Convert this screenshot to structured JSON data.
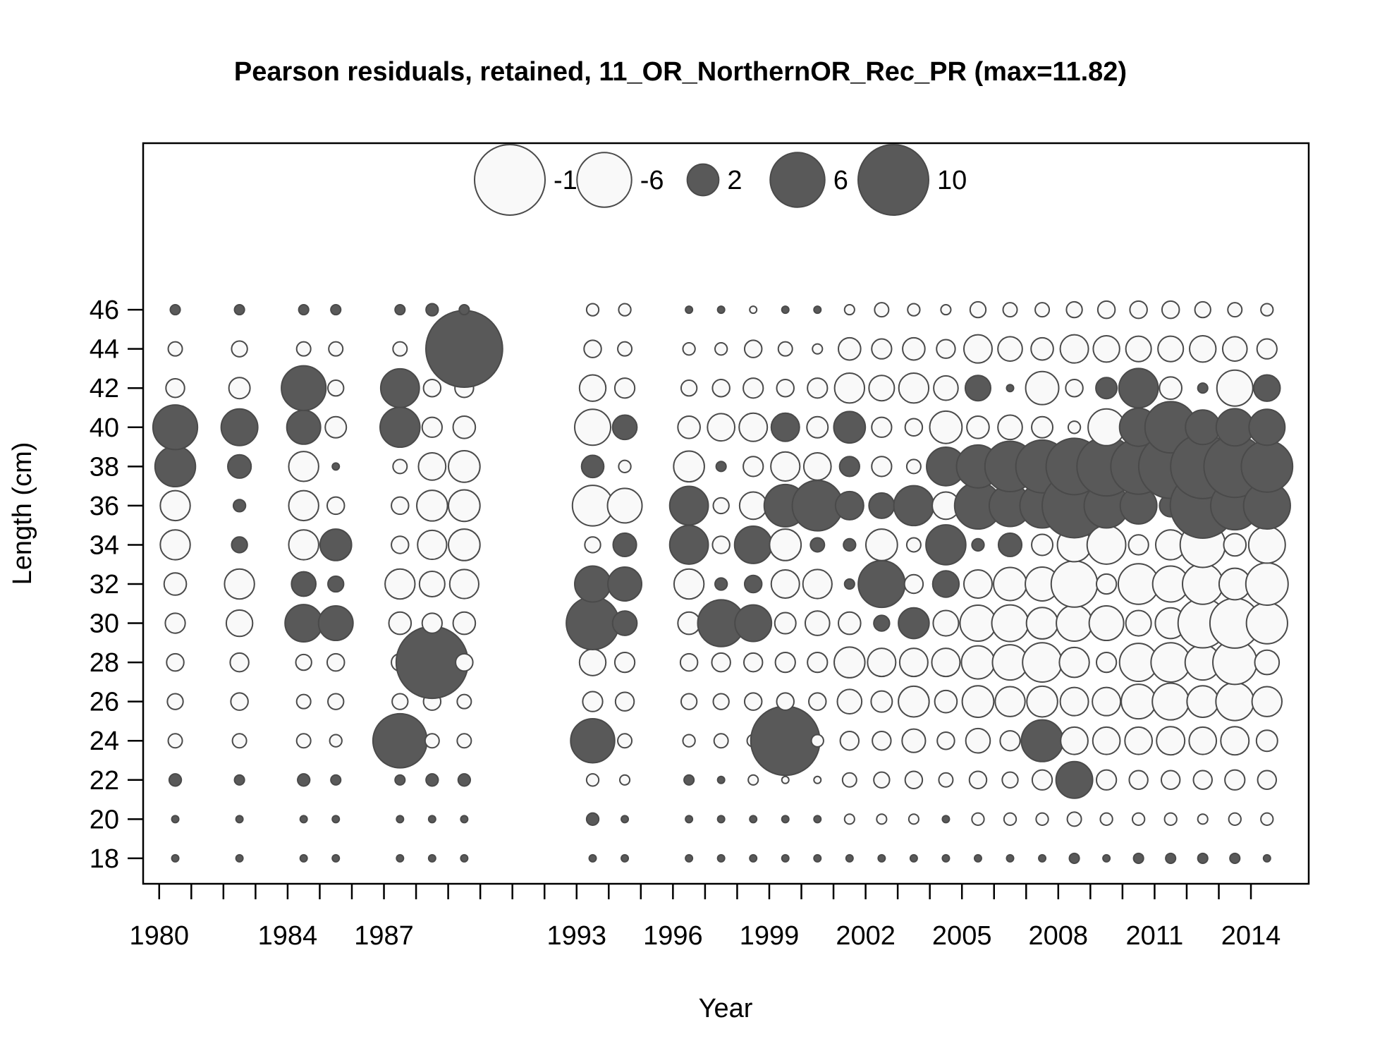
{
  "chart_data": {
    "type": "bubble",
    "title": "Pearson residuals, retained, 11_OR_NorthernOR_Rec_PR (max=11.82)",
    "xlabel": "Year",
    "ylabel": "Length (cm)",
    "x_ticks": [
      1980,
      1981,
      1982,
      1983,
      1984,
      1985,
      1986,
      1987,
      1988,
      1989,
      1990,
      1991,
      1992,
      1993,
      1994,
      1995,
      1996,
      1997,
      1998,
      1999,
      2000,
      2001,
      2002,
      2003,
      2004,
      2005,
      2006,
      2007,
      2008,
      2009,
      2010,
      2011,
      2012,
      2013,
      2014
    ],
    "x_tick_labels": [
      "1980",
      "1984",
      "1987",
      "1993",
      "1996",
      "1999",
      "2002",
      "2005",
      "2008",
      "2011",
      "2014"
    ],
    "xlim": [
      1979.5,
      2015.8
    ],
    "y_ticks": [
      18,
      20,
      22,
      24,
      26,
      28,
      30,
      32,
      34,
      36,
      38,
      40,
      42,
      44,
      46
    ],
    "ylim": [
      16.7,
      54.5
    ],
    "max_abs_residual": 11.82,
    "colors": {
      "positive": "#595959",
      "negative": "#f9f9f9",
      "outline": "#4a4a4a"
    },
    "legend": {
      "placement": "top-center",
      "entries": [
        {
          "label": "-10",
          "value": -10
        },
        {
          "label": "-6",
          "value": -6
        },
        {
          "label": "2",
          "value": 2
        },
        {
          "label": "6",
          "value": 6
        },
        {
          "label": "10",
          "value": 10
        }
      ]
    },
    "lengths": [
      18,
      20,
      22,
      24,
      26,
      28,
      30,
      32,
      34,
      36,
      38,
      40,
      42,
      44,
      46
    ],
    "series": [
      {
        "year": 1980.5,
        "residuals": [
          0.1,
          0.1,
          0.3,
          -0.4,
          -0.5,
          -0.6,
          -0.8,
          -1.0,
          -1.8,
          -1.8,
          3.3,
          4.0,
          -0.7,
          -0.4,
          0.2
        ]
      },
      {
        "year": 1982.5,
        "residuals": [
          0.1,
          0.1,
          0.2,
          -0.4,
          -0.6,
          -0.7,
          -1.4,
          -1.8,
          0.5,
          0.3,
          1.1,
          2.7,
          -0.9,
          -0.5,
          0.2
        ]
      },
      {
        "year": 1984.5,
        "residuals": [
          0.1,
          0.1,
          0.3,
          -0.4,
          -0.4,
          -0.5,
          2.8,
          1.2,
          -1.8,
          -1.8,
          -1.8,
          2.3,
          4.0,
          -0.4,
          0.2
        ]
      },
      {
        "year": 1985.5,
        "residuals": [
          0.1,
          0.1,
          0.2,
          -0.3,
          -0.5,
          -0.6,
          2.4,
          0.5,
          2.0,
          -0.6,
          0.1,
          -0.9,
          -0.5,
          -0.4,
          0.2
        ]
      },
      {
        "year": 1987.5,
        "residuals": [
          0.1,
          0.1,
          0.2,
          5.9,
          -0.5,
          -0.6,
          -1.0,
          -1.8,
          -0.6,
          -0.6,
          -0.4,
          3.2,
          3.0,
          -0.4,
          0.2
        ]
      },
      {
        "year": 1988.5,
        "residuals": [
          0.1,
          0.1,
          0.3,
          -0.4,
          -0.6,
          10.4,
          -0.8,
          -1.3,
          -1.7,
          -1.9,
          -1.5,
          -0.8,
          -0.6,
          0.3,
          0.3
        ]
      },
      {
        "year": 1989.5,
        "residuals": [
          0.1,
          0.1,
          0.3,
          -0.4,
          -0.4,
          -0.6,
          -1.0,
          -1.7,
          -2.0,
          -2.0,
          -2.0,
          -1.0,
          -0.7,
          11.82,
          0.2
        ]
      },
      {
        "year": 1993.5,
        "residuals": [
          0.1,
          0.3,
          -0.3,
          3.9,
          -0.8,
          -1.4,
          5.6,
          2.6,
          -0.5,
          -3.3,
          1.0,
          -2.6,
          -1.4,
          -0.6,
          -0.3
        ]
      },
      {
        "year": 1994.5,
        "residuals": [
          0.1,
          0.1,
          -0.2,
          -0.4,
          -0.7,
          -0.8,
          1.2,
          2.3,
          1.1,
          -2.4,
          -0.3,
          1.2,
          -0.8,
          -0.4,
          -0.3
        ]
      },
      {
        "year": 1996.5,
        "residuals": [
          0.1,
          0.1,
          0.2,
          -0.3,
          -0.5,
          -0.6,
          -1.0,
          -1.8,
          3.0,
          3.0,
          -1.9,
          -1.0,
          -0.5,
          -0.3,
          0.1
        ]
      },
      {
        "year": 1997.5,
        "residuals": [
          0.1,
          0.1,
          0.1,
          -0.4,
          -0.5,
          -0.7,
          4.4,
          0.3,
          -0.6,
          -0.5,
          0.2,
          -1.5,
          -0.6,
          -0.3,
          0.1
        ]
      },
      {
        "year": 1998.5,
        "residuals": [
          0.1,
          0.1,
          -0.2,
          -0.3,
          -0.6,
          -0.7,
          2.7,
          0.6,
          2.8,
          -1.5,
          -0.8,
          -1.6,
          -0.8,
          -0.6,
          -0.1
        ]
      },
      {
        "year": 1999.5,
        "residuals": [
          0.1,
          0.1,
          -0.1,
          9.6,
          -0.6,
          -0.8,
          -0.9,
          -1.6,
          -2.0,
          3.6,
          -1.7,
          1.6,
          -0.6,
          -0.4,
          0.1
        ]
      },
      {
        "year": 2000.5,
        "residuals": [
          0.1,
          0.1,
          -0.1,
          -0.3,
          -0.6,
          -0.8,
          -1.2,
          -1.7,
          0.4,
          5.1,
          -1.5,
          -0.9,
          -0.8,
          -0.2,
          0.1
        ]
      },
      {
        "year": 2001.5,
        "residuals": [
          0.1,
          -0.2,
          -0.4,
          -0.7,
          -1.2,
          -1.9,
          -1.0,
          0.2,
          0.3,
          1.6,
          0.8,
          2.0,
          -1.8,
          -1.0,
          -0.2
        ]
      },
      {
        "year": 2002.5,
        "residuals": [
          0.1,
          -0.2,
          -0.5,
          -0.7,
          -0.9,
          -1.6,
          0.5,
          4.4,
          -2.0,
          1.3,
          -0.8,
          -0.8,
          -1.3,
          -0.8,
          -0.4
        ]
      },
      {
        "year": 2003.5,
        "residuals": [
          0.1,
          -0.2,
          -0.6,
          -1.1,
          -1.9,
          -1.6,
          1.9,
          -0.7,
          -0.4,
          3.2,
          -0.4,
          -0.6,
          -1.8,
          -1.0,
          -0.3
        ]
      },
      {
        "year": 2004.5,
        "residuals": [
          0.1,
          0.1,
          -0.4,
          -0.6,
          -1.0,
          -1.6,
          -1.3,
          1.4,
          3.2,
          -1.5,
          3.0,
          -2.1,
          -1.2,
          -0.7,
          -0.2
        ]
      },
      {
        "year": 2005.5,
        "residuals": [
          0.1,
          -0.3,
          -0.6,
          -1.2,
          -2.0,
          -2.2,
          -2.6,
          -1.6,
          0.3,
          4.4,
          3.7,
          -1.0,
          1.3,
          -1.6,
          -0.5
        ]
      },
      {
        "year": 2006.5,
        "residuals": [
          0.1,
          -0.3,
          -0.5,
          -0.8,
          -1.8,
          -2.5,
          -2.7,
          -2.2,
          1.1,
          3.5,
          5.1,
          -1.2,
          0.1,
          -1.2,
          -0.4
        ]
      },
      {
        "year": 2007.5,
        "residuals": [
          0.1,
          -0.3,
          -0.8,
          3.5,
          -1.9,
          -3.1,
          -2.0,
          -2.3,
          -0.9,
          4.0,
          5.6,
          -0.9,
          -2.2,
          -1.0,
          -0.4
        ]
      },
      {
        "year": 2008.5,
        "residuals": [
          0.2,
          -0.4,
          2.7,
          -1.5,
          -1.6,
          -1.8,
          -2.6,
          -4.3,
          -2.3,
          8.3,
          6.4,
          -0.3,
          -0.6,
          -1.6,
          -0.5
        ]
      },
      {
        "year": 2009.5,
        "residuals": [
          0.1,
          -0.3,
          -0.8,
          -1.5,
          -1.6,
          -0.8,
          -2.4,
          -0.8,
          -3.0,
          4.0,
          7.0,
          -2.7,
          0.9,
          -1.4,
          -0.6
        ]
      },
      {
        "year": 2010.5,
        "residuals": [
          0.2,
          -0.3,
          -0.7,
          -1.5,
          -2.4,
          -2.9,
          -1.3,
          -3.3,
          -0.8,
          2.7,
          6.2,
          2.9,
          3.1,
          -1.3,
          -0.6
        ]
      },
      {
        "year": 2011.5,
        "residuals": [
          0.2,
          -0.3,
          -0.7,
          -1.6,
          -2.7,
          -3.1,
          -1.9,
          -2.6,
          -1.8,
          1.0,
          8.2,
          5.3,
          -1.0,
          -1.3,
          -0.6
        ]
      },
      {
        "year": 2012.5,
        "residuals": [
          0.2,
          -0.2,
          -0.7,
          -1.5,
          -2.0,
          -2.5,
          -4.9,
          -3.3,
          -4.1,
          8.5,
          8.3,
          2.4,
          0.2,
          -1.4,
          -0.5
        ]
      },
      {
        "year": 2013.5,
        "residuals": [
          0.2,
          -0.3,
          -0.8,
          -1.6,
          -2.9,
          -3.9,
          -5.0,
          -2.0,
          -1.0,
          4.7,
          7.7,
          2.8,
          -2.6,
          -1.2,
          -0.4
        ]
      },
      {
        "year": 2014.5,
        "residuals": [
          0.1,
          -0.3,
          -0.7,
          -0.9,
          -1.8,
          -1.2,
          -3.4,
          -3.6,
          -2.7,
          4.4,
          5.3,
          2.6,
          1.4,
          -0.8,
          -0.3
        ]
      }
    ]
  }
}
